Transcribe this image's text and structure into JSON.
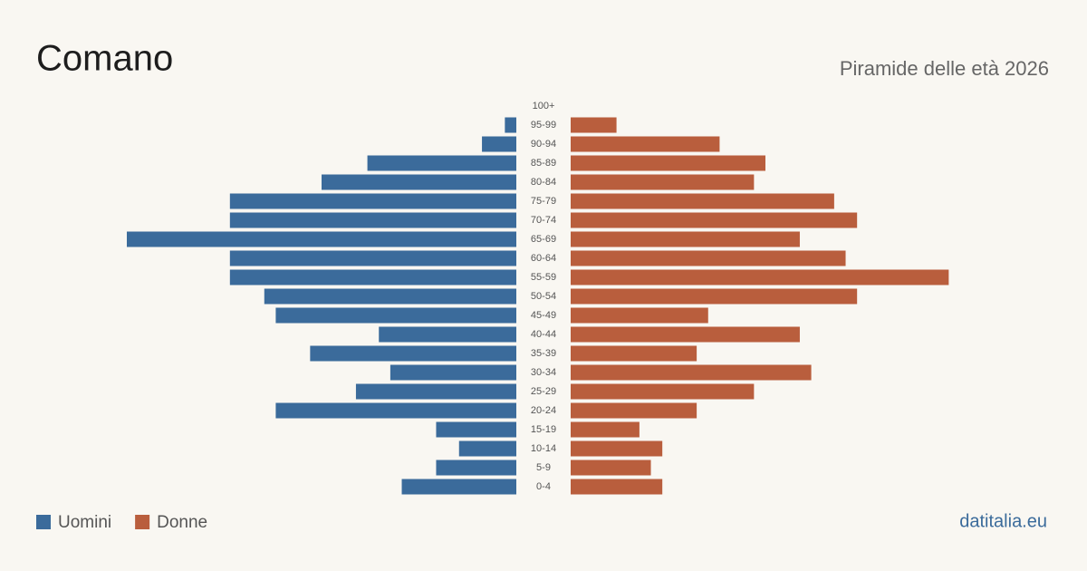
{
  "chart_data": {
    "type": "pyramid",
    "title": "Comano",
    "subtitle": "Piramide delle età 2026",
    "source": "datitalia.eu",
    "categories": [
      "100+",
      "95-99",
      "90-94",
      "85-89",
      "80-84",
      "75-79",
      "70-74",
      "65-69",
      "60-64",
      "55-59",
      "50-54",
      "45-49",
      "40-44",
      "35-39",
      "30-34",
      "25-29",
      "20-24",
      "15-19",
      "10-14",
      "5-9",
      "0-4"
    ],
    "series": [
      {
        "name": "Uomini",
        "color": "#3b6b9b",
        "values": [
          0,
          1,
          3,
          13,
          17,
          25,
          25,
          34,
          25,
          25,
          22,
          21,
          12,
          18,
          11,
          14,
          21,
          7,
          5,
          7,
          10
        ]
      },
      {
        "name": "Donne",
        "color": "#b95e3d",
        "values": [
          0,
          4,
          13,
          17,
          16,
          23,
          25,
          20,
          24,
          33,
          25,
          12,
          20,
          11,
          21,
          16,
          11,
          6,
          8,
          7,
          8
        ]
      }
    ]
  }
}
